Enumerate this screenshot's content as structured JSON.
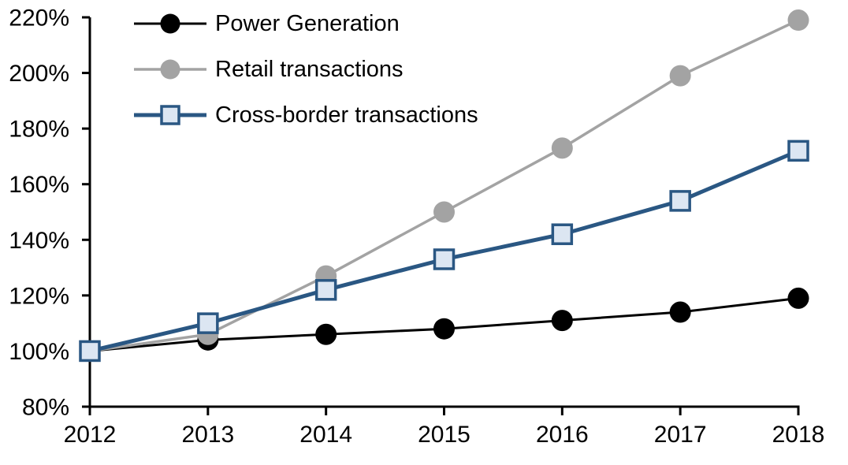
{
  "chart_data": {
    "type": "line",
    "title": "",
    "xlabel": "",
    "ylabel": "",
    "x": [
      "2012",
      "2013",
      "2014",
      "2015",
      "2016",
      "2017",
      "2018"
    ],
    "ylim": [
      80,
      220
    ],
    "y_ticks": [
      220,
      200,
      180,
      160,
      140,
      120,
      100,
      80
    ],
    "y_tick_labels": [
      "220%",
      "200%",
      "180%",
      "160%",
      "140%",
      "120%",
      "100%",
      "80%"
    ],
    "grid": false,
    "legend_position": "top-left",
    "axis_color": "#000000",
    "series": [
      {
        "name": "Power Generation",
        "values": [
          100,
          104,
          106,
          108,
          111,
          114,
          119
        ],
        "color": "#000000",
        "marker": "circle",
        "marker_fill": "#000000",
        "line_width": 3
      },
      {
        "name": "Retail transactions",
        "values": [
          100,
          106,
          127,
          150,
          173,
          199,
          219
        ],
        "color": "#A3A3A3",
        "marker": "circle",
        "marker_fill": "#A3A3A3",
        "line_width": 3.5
      },
      {
        "name": "Cross-border transactions",
        "values": [
          100,
          110,
          122,
          133,
          142,
          154,
          172
        ],
        "color": "#2A5783",
        "marker": "square",
        "marker_fill": "#DCE6F2",
        "line_width": 5
      }
    ]
  }
}
